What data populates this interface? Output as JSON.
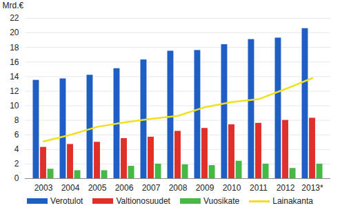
{
  "chart_data": {
    "type": "bar",
    "y_label": "Mrd.€",
    "categories": [
      "2003",
      "2004",
      "2005",
      "2006",
      "2007",
      "2008",
      "2009",
      "2010",
      "2011",
      "2012",
      "2013*"
    ],
    "series": [
      {
        "name": "Verotulot",
        "type": "bar",
        "color": "#1f5fc4",
        "values": [
          13.5,
          13.7,
          14.2,
          15.1,
          16.3,
          17.5,
          17.6,
          18.4,
          19.1,
          19.3,
          20.6
        ]
      },
      {
        "name": "Valtionosuudet",
        "type": "bar",
        "color": "#e0302c",
        "values": [
          4.3,
          4.7,
          5.0,
          5.5,
          5.7,
          6.5,
          6.9,
          7.4,
          7.6,
          8.0,
          8.3
        ]
      },
      {
        "name": "Vuosikate",
        "type": "bar",
        "color": "#46b846",
        "values": [
          1.3,
          1.1,
          1.1,
          1.7,
          2.0,
          1.9,
          1.8,
          2.4,
          2.0,
          1.4,
          2.0
        ]
      },
      {
        "name": "Lainakanta",
        "type": "line",
        "color": "#f0e020",
        "values": [
          5.1,
          6.0,
          7.1,
          7.7,
          8.2,
          8.6,
          9.8,
          10.5,
          10.9,
          12.3,
          13.8
        ]
      }
    ],
    "ylim": [
      0,
      22
    ],
    "yticks": [
      0,
      2,
      4,
      6,
      8,
      10,
      12,
      14,
      16,
      18,
      20,
      22
    ],
    "grid": true,
    "legend": "bottom"
  }
}
